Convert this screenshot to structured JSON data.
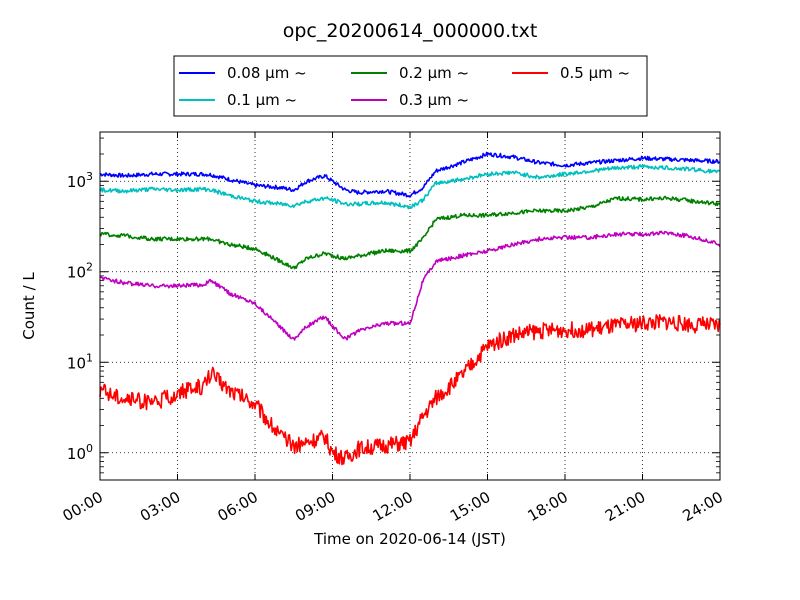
{
  "chart_data": {
    "type": "line",
    "title": "opc_20200614_000000.txt",
    "xlabel": "Time on 2020-06-14 (JST)",
    "ylabel": "Count / L",
    "y_scale": "log",
    "ylim": [
      0.5,
      3500
    ],
    "xlim": [
      "00:00",
      "24:00"
    ],
    "grid": true,
    "legend_position": "top-center",
    "x_tick_labels": [
      "00:00",
      "03:00",
      "06:00",
      "09:00",
      "12:00",
      "15:00",
      "18:00",
      "21:00",
      "24:00"
    ],
    "y_ticks": [
      {
        "value": 1,
        "label_base": "10",
        "label_exp": "0"
      },
      {
        "value": 10,
        "label_base": "10",
        "label_exp": "1"
      },
      {
        "value": 100,
        "label_base": "10",
        "label_exp": "2"
      },
      {
        "value": 1000,
        "label_base": "10",
        "label_exp": "3"
      }
    ],
    "x_hours": [
      0,
      1,
      2,
      3,
      4,
      4.3,
      5,
      6,
      7,
      7.5,
      8,
      8.7,
      9,
      9.5,
      10,
      11,
      12,
      12.5,
      13,
      14,
      15,
      16,
      17,
      18,
      19,
      20,
      21,
      22,
      23,
      24
    ],
    "series": [
      {
        "name": "0.08 μm ~",
        "color": "#0000ff",
        "values": [
          1200,
          1150,
          1200,
          1200,
          1200,
          1180,
          1050,
          900,
          850,
          800,
          1000,
          1150,
          1000,
          800,
          750,
          780,
          700,
          850,
          1300,
          1600,
          2000,
          1850,
          1600,
          1500,
          1600,
          1700,
          1800,
          1750,
          1700,
          1650
        ]
      },
      {
        "name": "0.1 μm ~",
        "color": "#00bfbf",
        "values": [
          800,
          780,
          820,
          800,
          820,
          800,
          700,
          600,
          560,
          540,
          600,
          650,
          620,
          560,
          560,
          580,
          520,
          620,
          950,
          1050,
          1200,
          1250,
          1100,
          1200,
          1300,
          1400,
          1450,
          1400,
          1350,
          1250
        ]
      },
      {
        "name": "0.2 μm ~",
        "color": "#008000",
        "values": [
          260,
          250,
          230,
          230,
          230,
          230,
          200,
          180,
          130,
          110,
          140,
          160,
          150,
          140,
          150,
          170,
          170,
          230,
          380,
          420,
          420,
          450,
          470,
          470,
          520,
          650,
          630,
          650,
          600,
          560
        ]
      },
      {
        "name": "0.3 μm ~",
        "color": "#bf00bf",
        "values": [
          85,
          75,
          70,
          70,
          72,
          80,
          58,
          45,
          24,
          18,
          25,
          32,
          25,
          18,
          22,
          27,
          27,
          80,
          130,
          150,
          170,
          200,
          230,
          240,
          240,
          260,
          260,
          270,
          240,
          200
        ]
      },
      {
        "name": "0.5 μm ~",
        "color": "#ff0000",
        "values": [
          5,
          4,
          3.5,
          4.5,
          5.5,
          7.5,
          5,
          3.5,
          1.5,
          1.2,
          1.3,
          1.5,
          1.0,
          0.85,
          1.1,
          1.2,
          1.3,
          2.5,
          4,
          7,
          15,
          20,
          22,
          23,
          23,
          25,
          27,
          28,
          26,
          25
        ]
      }
    ]
  }
}
